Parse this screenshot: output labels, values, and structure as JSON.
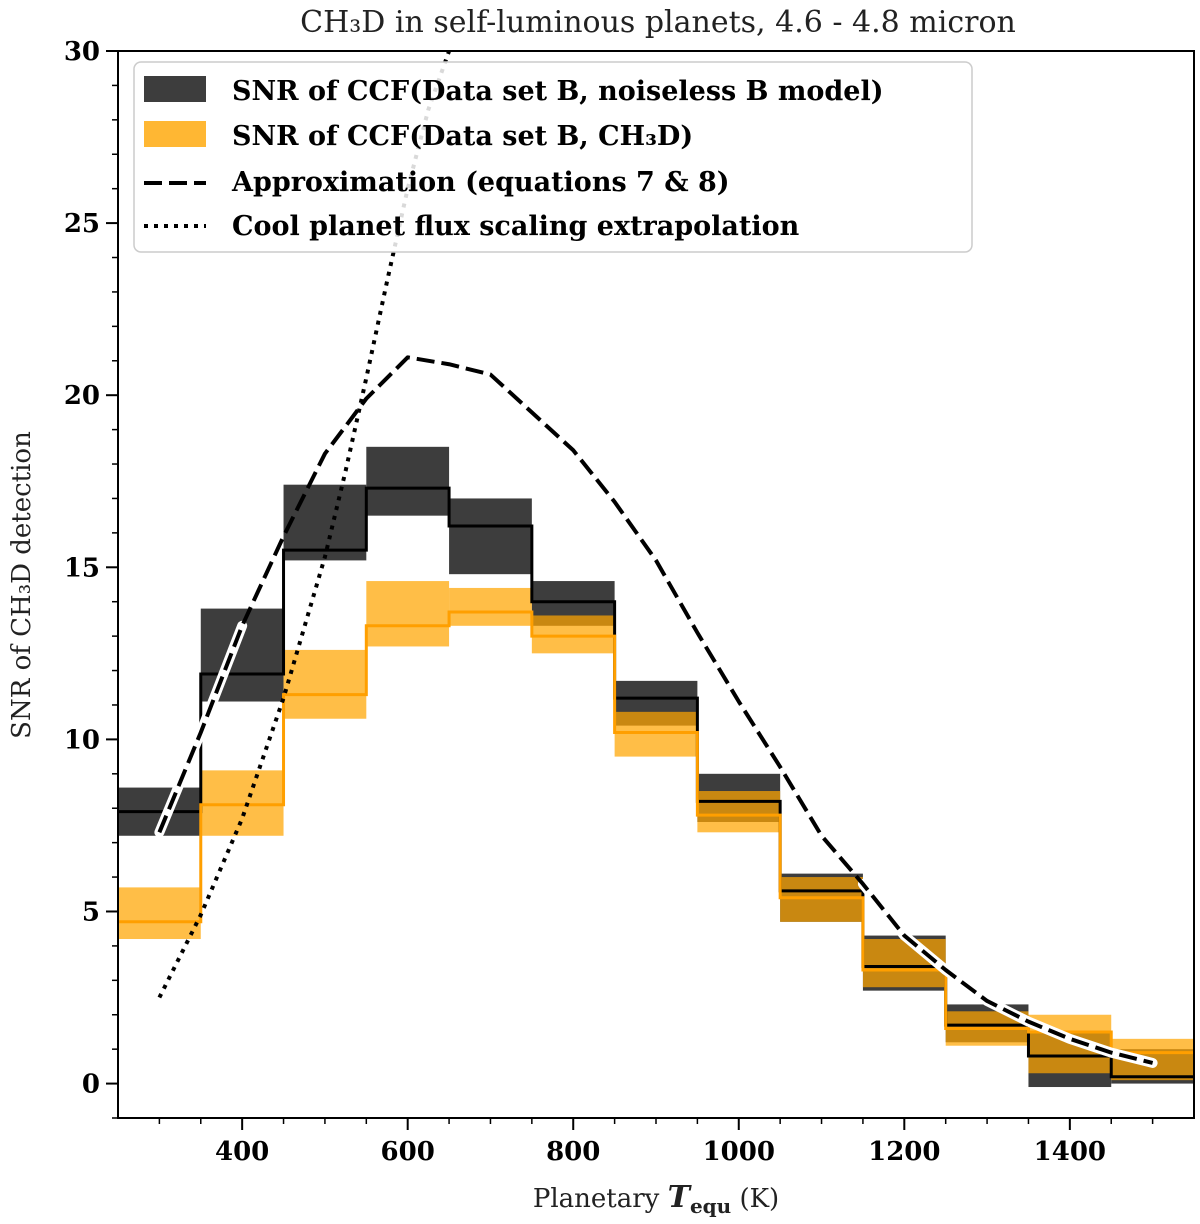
{
  "chart_data": {
    "type": "step-band",
    "title": "CH₃D in self-luminous planets, 4.6 - 4.8 micron",
    "xlabel": "Planetary T_equ (K)",
    "xlabel_parts": {
      "prefix": "Planetary ",
      "symbol": "T",
      "subscript": "equ",
      "suffix": " (K)"
    },
    "ylabel": "SNR of CH₃D detection",
    "xlim": [
      250,
      1550
    ],
    "ylim": [
      -1,
      30
    ],
    "x_ticks": [
      400,
      600,
      800,
      1000,
      1200,
      1400
    ],
    "x_tick_labels": [
      "400",
      "600",
      "800",
      "1000",
      "1200",
      "1400"
    ],
    "y_ticks": [
      0,
      5,
      10,
      15,
      20,
      25,
      30
    ],
    "y_tick_labels": [
      "0",
      "5",
      "10",
      "15",
      "20",
      "25",
      "30"
    ],
    "bin_edges": [
      250,
      350,
      450,
      550,
      650,
      750,
      850,
      950,
      1050,
      1150,
      1250,
      1350,
      1450,
      1550
    ],
    "series": [
      {
        "name": "SNR of CCF(Data set B, noiseless B model)",
        "color": "#000000",
        "band_color": "#3d3d3d",
        "mean": [
          7.9,
          11.9,
          15.5,
          17.3,
          16.2,
          14.0,
          11.2,
          8.2,
          5.6,
          3.4,
          1.7,
          0.8,
          0.2
        ],
        "low": [
          7.2,
          11.1,
          15.2,
          16.5,
          14.8,
          13.3,
          10.4,
          7.6,
          4.7,
          2.7,
          1.2,
          -0.1,
          0.0
        ],
        "high": [
          8.6,
          13.8,
          17.4,
          18.5,
          17.0,
          14.6,
          11.7,
          9.0,
          6.1,
          4.3,
          2.3,
          1.5,
          1.0
        ]
      },
      {
        "name": "SNR of CCF(Data set B, CH₃D)",
        "color": "#ff9f00",
        "band_color": "#ffa500",
        "band_opacity": 0.72,
        "mean": [
          4.7,
          8.1,
          11.3,
          13.3,
          13.7,
          13.0,
          10.2,
          7.8,
          5.4,
          3.3,
          1.6,
          1.5,
          0.9
        ],
        "low": [
          4.2,
          7.2,
          10.6,
          12.7,
          13.3,
          12.5,
          9.5,
          7.3,
          4.7,
          2.8,
          1.1,
          0.3,
          0.1
        ],
        "high": [
          5.7,
          9.1,
          12.6,
          14.6,
          14.4,
          13.6,
          10.8,
          8.5,
          6.0,
          4.2,
          2.1,
          2.0,
          1.3
        ]
      }
    ],
    "lines": [
      {
        "name": "Approximation (equations 7 & 8)",
        "style": "dashed",
        "color": "#000000",
        "x": [
          300,
          350,
          400,
          450,
          500,
          550,
          600,
          650,
          700,
          750,
          800,
          850,
          900,
          950,
          1000,
          1050,
          1100,
          1150,
          1200,
          1250,
          1300,
          1350,
          1400,
          1450,
          1500
        ],
        "y": [
          7.3,
          10.2,
          13.3,
          15.9,
          18.3,
          19.9,
          21.1,
          20.9,
          20.6,
          19.5,
          18.4,
          16.9,
          15.2,
          13.1,
          11.1,
          9.2,
          7.2,
          5.8,
          4.3,
          3.3,
          2.4,
          1.8,
          1.3,
          0.9,
          0.6
        ],
        "white_outline_ranges": [
          [
            300,
            430
          ],
          [
            1150,
            1500
          ]
        ]
      },
      {
        "name": "Cool planet flux scaling extrapolation",
        "style": "dotted",
        "color": "#000000",
        "x": [
          300,
          350,
          400,
          450,
          500,
          525,
          550,
          575,
          600,
          625,
          650
        ],
        "y": [
          2.5,
          4.9,
          7.7,
          11.2,
          15.3,
          17.8,
          20.5,
          23.3,
          26.0,
          28.3,
          30.0
        ],
        "white_outline_ranges": [
          [
            560,
            660
          ]
        ]
      }
    ],
    "legend": {
      "position": "top-left",
      "entries": [
        "SNR of CCF(Data set B, noiseless B model)",
        "SNR of CCF(Data set B, CH₃D)",
        "Approximation (equations 7 & 8)",
        "Cool planet flux scaling extrapolation"
      ]
    }
  }
}
